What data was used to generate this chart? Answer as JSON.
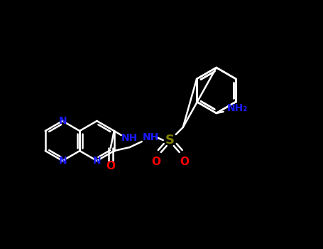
{
  "bg_color": "#000000",
  "N_color": "#1a1aff",
  "O_color": "#ff0000",
  "S_color": "#808000",
  "bond_color": "#ffffff",
  "figsize": [
    4.55,
    3.5
  ],
  "dpi": 100,
  "xlim": [
    0,
    455
  ],
  "ylim": [
    0,
    350
  ]
}
